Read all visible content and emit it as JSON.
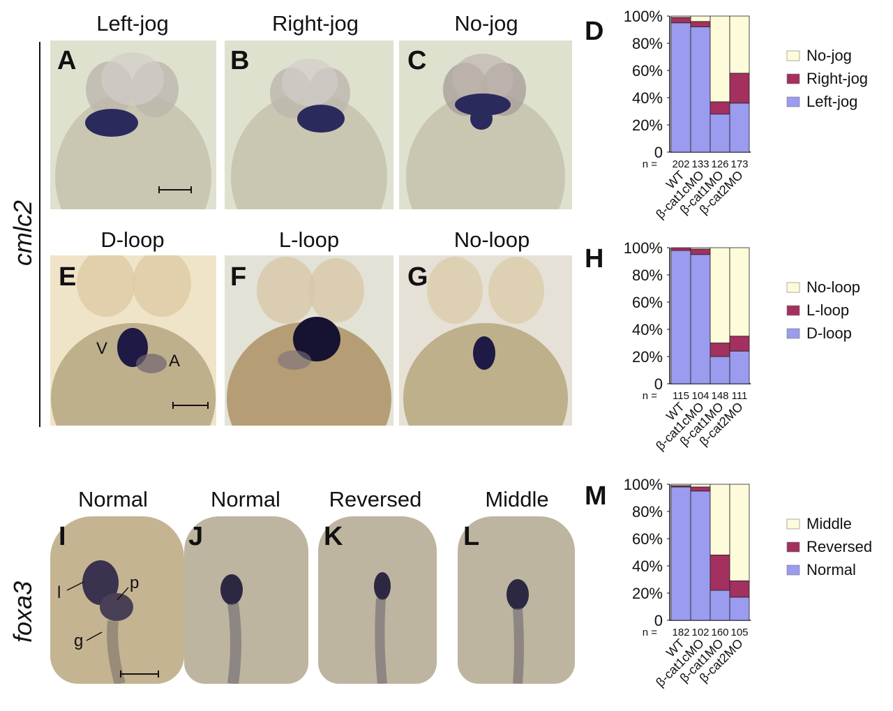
{
  "gene_labels": {
    "top": "cmlc2",
    "bottom": "foxa3"
  },
  "rows": [
    {
      "titles": [
        "Left-jog",
        "Right-jog",
        "No-jog"
      ],
      "panel_letters": [
        "A",
        "B",
        "C"
      ],
      "chart_letter": "D"
    },
    {
      "titles": [
        "D-loop",
        "L-loop",
        "No-loop"
      ],
      "panel_letters": [
        "E",
        "F",
        "G"
      ],
      "chart_letter": "H",
      "annotations": {
        "ventricle": "V",
        "atrium": "A"
      }
    },
    {
      "titles": [
        "Normal",
        "Normal",
        "Reversed",
        "Middle"
      ],
      "panel_letters": [
        "I",
        "J",
        "K",
        "L"
      ],
      "chart_letter": "M",
      "annotations": {
        "liver": "l",
        "pancreas": "p",
        "gut": "g"
      }
    }
  ],
  "colors": {
    "cat1": "#9b9bef",
    "cat2": "#a3305f",
    "cat3": "#fdfbd9"
  },
  "chart_data": [
    {
      "type": "bar",
      "stacked": true,
      "panel": "D",
      "categories": [
        "WT",
        "β-cat1cMO",
        "β-cat1MO",
        "β-cat2MO"
      ],
      "n_prefix": "n =",
      "n_values": [
        "202",
        "133",
        "126",
        "173"
      ],
      "y_ticks": [
        "0",
        "20%",
        "40%",
        "60%",
        "80%",
        "100%"
      ],
      "ylim": [
        0,
        100
      ],
      "series": [
        {
          "name": "Left-jog",
          "values": [
            95,
            92,
            28,
            36
          ]
        },
        {
          "name": "Right-jog",
          "values": [
            4,
            4,
            9,
            22
          ]
        },
        {
          "name": "No-jog",
          "values": [
            1,
            4,
            63,
            42
          ]
        }
      ],
      "legend": "right"
    },
    {
      "type": "bar",
      "stacked": true,
      "panel": "H",
      "categories": [
        "WT",
        "β-cat1cMO",
        "β-cat1MO",
        "β-cat2MO"
      ],
      "n_prefix": "n =",
      "n_values": [
        "115",
        "104",
        "148",
        "111"
      ],
      "y_ticks": [
        "0",
        "20%",
        "40%",
        "60%",
        "80%",
        "100%"
      ],
      "ylim": [
        0,
        100
      ],
      "series": [
        {
          "name": "D-loop",
          "values": [
            98,
            95,
            20,
            24
          ]
        },
        {
          "name": "L-loop",
          "values": [
            2,
            4,
            10,
            11
          ]
        },
        {
          "name": "No-loop",
          "values": [
            0,
            1,
            70,
            65
          ]
        }
      ],
      "legend": "right"
    },
    {
      "type": "bar",
      "stacked": true,
      "panel": "M",
      "categories": [
        "WT",
        "β-cat1cMO",
        "β-cat1MO",
        "β-cat2MO"
      ],
      "n_prefix": "n =",
      "n_values": [
        "182",
        "102",
        "160",
        "105"
      ],
      "y_ticks": [
        "0",
        "20%",
        "40%",
        "60%",
        "80%",
        "100%"
      ],
      "ylim": [
        0,
        100
      ],
      "series": [
        {
          "name": "Normal",
          "values": [
            98,
            95,
            22,
            17
          ]
        },
        {
          "name": "Reversed",
          "values": [
            1,
            3,
            26,
            12
          ]
        },
        {
          "name": "Middle",
          "values": [
            1,
            2,
            52,
            71
          ]
        }
      ],
      "legend": "right"
    }
  ]
}
